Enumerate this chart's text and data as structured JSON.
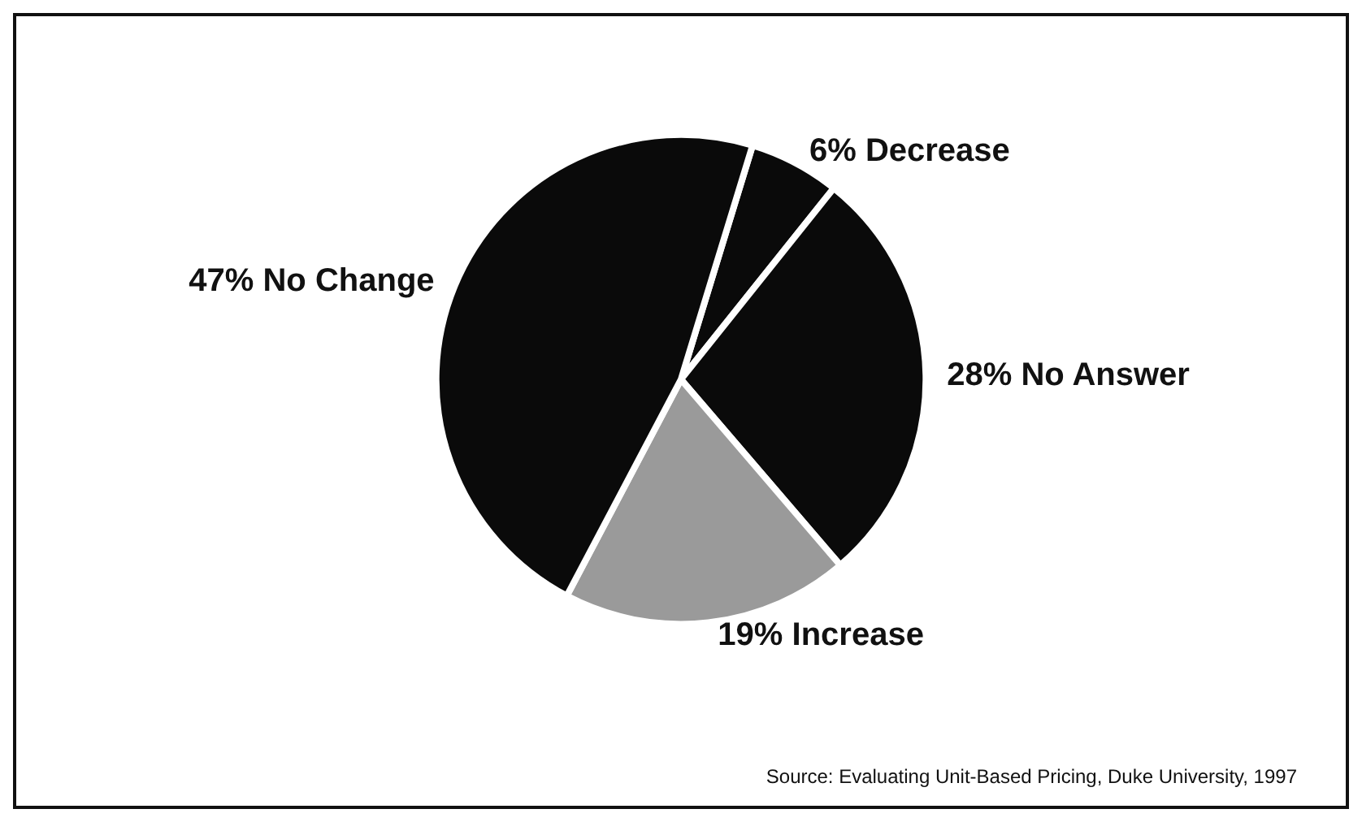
{
  "chart_data": {
    "type": "pie",
    "categories": [
      "Decrease",
      "No Answer",
      "Increase",
      "No Change"
    ],
    "values": [
      6,
      28,
      19,
      47
    ],
    "value_labels": [
      "6%",
      "28%",
      "19%",
      "47%"
    ],
    "colors": [
      "#0a0a0a",
      "#0a0a0a",
      "#9a9a9a",
      "#0a0a0a"
    ],
    "annotations": [
      "Source: Evaluating Unit-Based Pricing, Duke University, 1997"
    ]
  }
}
